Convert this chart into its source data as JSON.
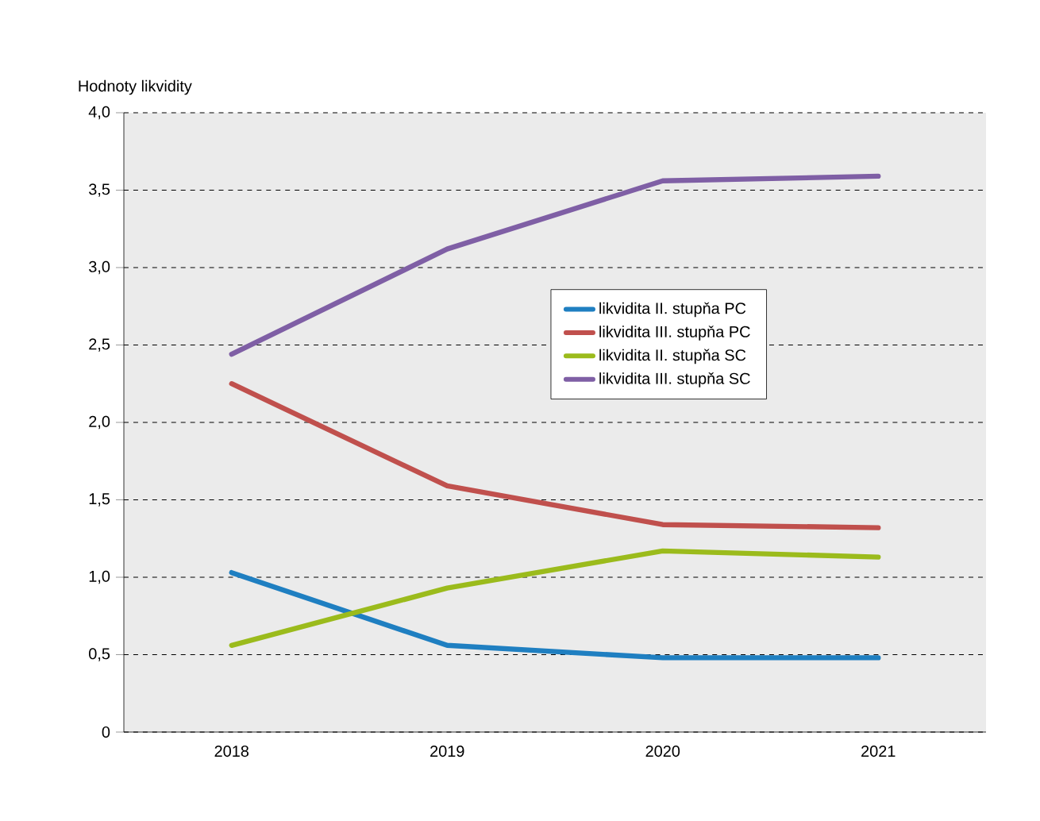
{
  "chart_data": {
    "type": "line",
    "ylabel": "Hodnoty likvidity",
    "categories": [
      "2018",
      "2019",
      "2020",
      "2021"
    ],
    "series": [
      {
        "name": "likvidita II. stupňa PC",
        "color": "#1f7fc1",
        "values": [
          1.03,
          0.56,
          0.48,
          0.48
        ]
      },
      {
        "name": "likvidita III. stupňa PC",
        "color": "#c0504d",
        "values": [
          2.25,
          1.59,
          1.34,
          1.32
        ]
      },
      {
        "name": "likvidita II. stupňa SC",
        "color": "#9bbb1c",
        "values": [
          0.56,
          0.93,
          1.17,
          1.13
        ]
      },
      {
        "name": "likvidita III. stupňa SC",
        "color": "#7f5fa5",
        "values": [
          2.44,
          3.12,
          3.56,
          3.59
        ]
      }
    ],
    "ylim": [
      0,
      4
    ],
    "yticks": [
      0,
      {
        "value": 0.5,
        "label": "0,5"
      },
      {
        "value": 1,
        "label": "1,0"
      },
      {
        "value": 1.5,
        "label": "1,5"
      },
      {
        "value": 2,
        "label": "2,0"
      },
      {
        "value": 2.5,
        "label": "2,5"
      },
      {
        "value": 3,
        "label": "3,0"
      },
      {
        "value": 3.5,
        "label": "3,5"
      },
      {
        "value": 4,
        "label": "4,0"
      }
    ],
    "grid": "y",
    "legend": "right",
    "marker": "none",
    "line_style": "solid"
  }
}
